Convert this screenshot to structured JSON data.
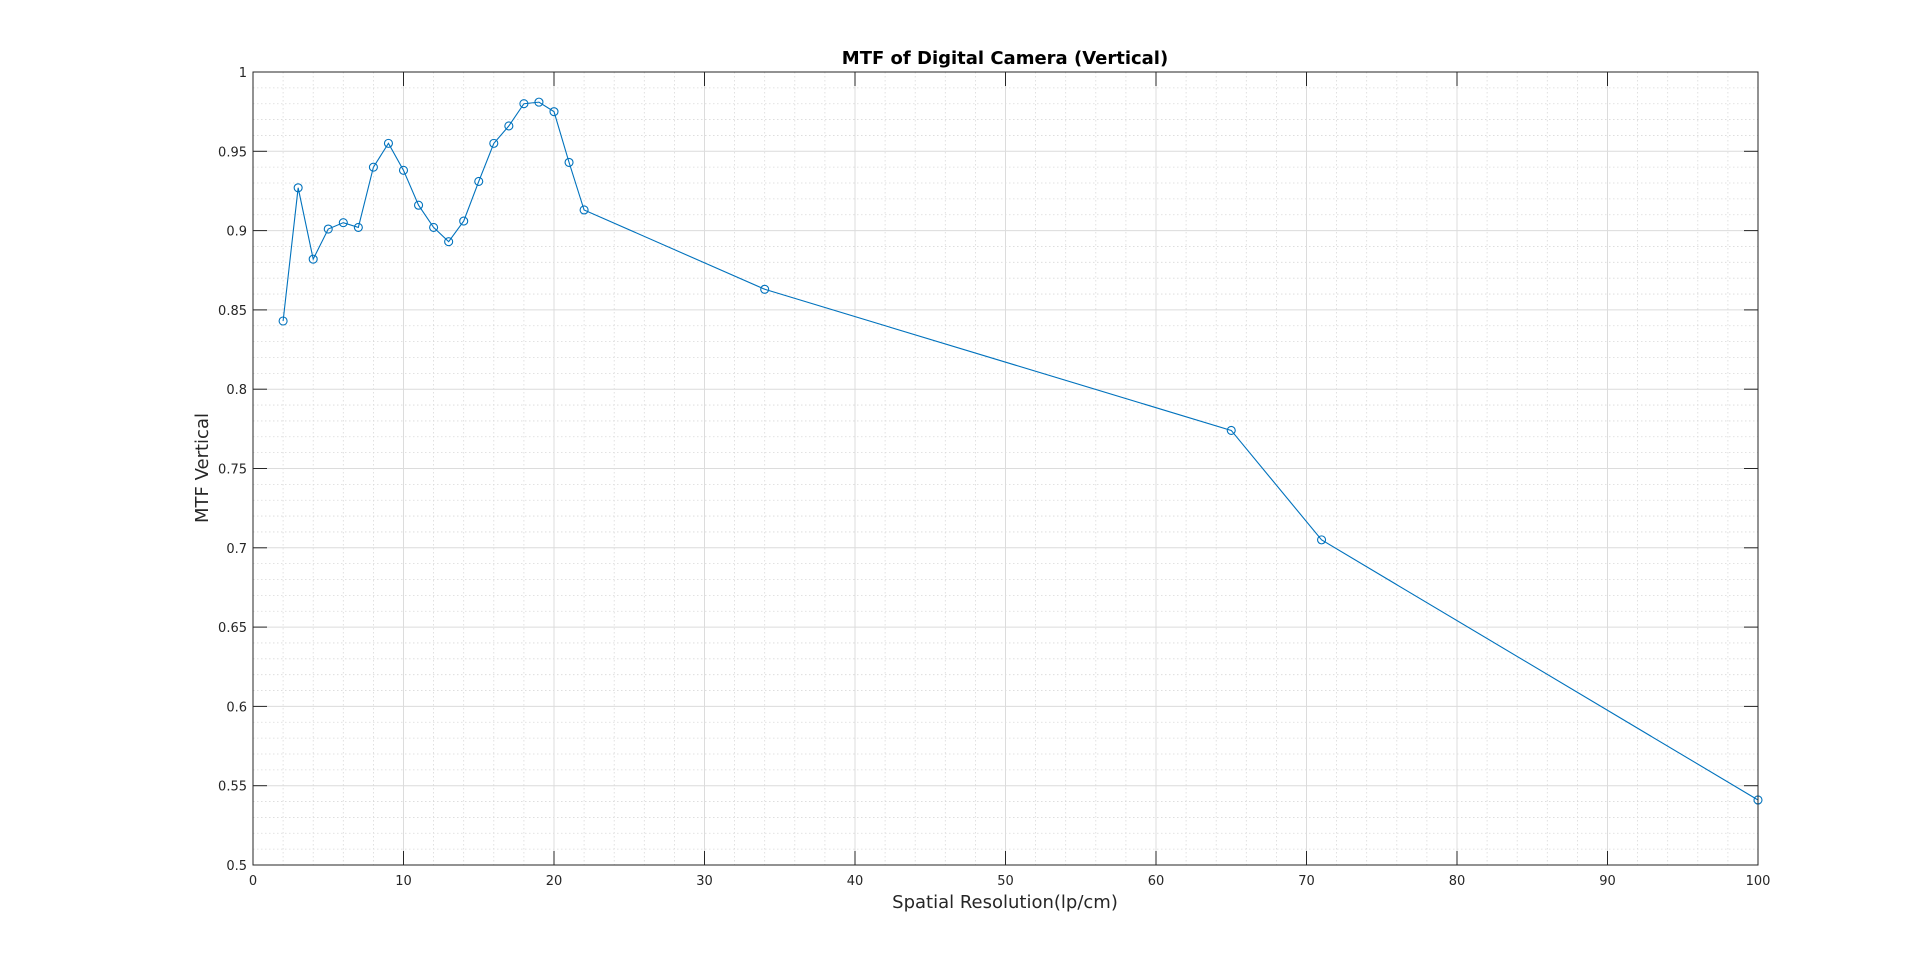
{
  "chart_data": {
    "type": "line",
    "title": "MTF of Digital Camera (Vertical)",
    "xlabel": "Spatial Resolution(lp/cm)",
    "ylabel": "MTF Vertical",
    "xlim": [
      0,
      100
    ],
    "ylim": [
      0.5,
      1
    ],
    "xticks": [
      0,
      10,
      20,
      30,
      40,
      50,
      60,
      70,
      80,
      90,
      100
    ],
    "yticks": [
      0.5,
      0.55,
      0.6,
      0.65,
      0.7,
      0.75,
      0.8,
      0.85,
      0.9,
      0.95,
      1
    ],
    "xtick_labels": [
      "0",
      "10",
      "20",
      "30",
      "40",
      "50",
      "60",
      "70",
      "80",
      "90",
      "100"
    ],
    "ytick_labels": [
      "0.5",
      "0.55",
      "0.6",
      "0.65",
      "0.7",
      "0.75",
      "0.8",
      "0.85",
      "0.9",
      "0.95",
      "1"
    ],
    "grid": true,
    "minor_grid": true,
    "marker": "circle",
    "line_color": "#0072BD",
    "series": [
      {
        "x": [
          2,
          3,
          4,
          5,
          6,
          7,
          8,
          9,
          10,
          11,
          12,
          13,
          14,
          15,
          16,
          17,
          18,
          19,
          20,
          21,
          22,
          34,
          65,
          71,
          100
        ],
        "y": [
          0.843,
          0.927,
          0.882,
          0.901,
          0.905,
          0.902,
          0.94,
          0.955,
          0.938,
          0.916,
          0.902,
          0.893,
          0.906,
          0.931,
          0.955,
          0.966,
          0.98,
          0.981,
          0.975,
          0.943,
          0.913,
          0.863,
          0.774,
          0.705,
          0.541
        ]
      }
    ]
  }
}
